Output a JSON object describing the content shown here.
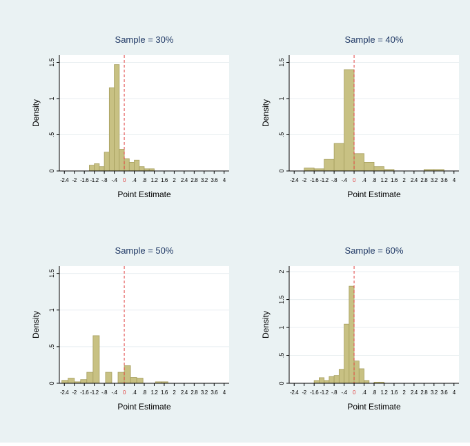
{
  "colors": {
    "background": "#eaf2f3",
    "plot_area": "#ffffff",
    "bar_fill": "#c8c183",
    "bar_stroke": "#a59e5e",
    "grid": "#e8eef0",
    "ref_line": "#e0413f",
    "title": "#1e3764",
    "text": "#000000"
  },
  "chart_data": [
    {
      "type": "bar",
      "title": "Sample = 30%",
      "xlabel": "Point Estimate",
      "ylabel": "Density",
      "xlim": [
        -2.6,
        4.2
      ],
      "ylim": [
        0,
        1.6
      ],
      "xticks": [
        -2.4,
        -2,
        -1.6,
        -1.2,
        -0.8,
        -0.4,
        0,
        0.4,
        0.8,
        1.2,
        1.6,
        2,
        2.4,
        2.8,
        3.2,
        3.6,
        4
      ],
      "xtick_labels": [
        "-2.4",
        "-2",
        "-1.6",
        "-1.2",
        "-.8",
        "-.4",
        "0",
        ".4",
        ".8",
        "1.2",
        "1.6",
        "2",
        "2.4",
        "2.8",
        "3.2",
        "3.6",
        "4"
      ],
      "yticks": [
        0,
        0.5,
        1,
        1.5
      ],
      "ytick_labels": [
        "0",
        ".5",
        "1",
        "1.5"
      ],
      "grid": true,
      "ref_line_x": 0,
      "bin_width": 0.2,
      "bins": [
        {
          "x": -1.4,
          "y": 0.08
        },
        {
          "x": -1.2,
          "y": 0.1
        },
        {
          "x": -1.0,
          "y": 0.06
        },
        {
          "x": -0.8,
          "y": 0.26
        },
        {
          "x": -0.6,
          "y": 1.15
        },
        {
          "x": -0.4,
          "y": 1.47
        },
        {
          "x": -0.2,
          "y": 0.3
        },
        {
          "x": 0.0,
          "y": 0.17
        },
        {
          "x": 0.2,
          "y": 0.12
        },
        {
          "x": 0.4,
          "y": 0.15
        },
        {
          "x": 0.6,
          "y": 0.06
        },
        {
          "x": 0.8,
          "y": 0.03
        },
        {
          "x": 1.0,
          "y": 0.03
        }
      ]
    },
    {
      "type": "bar",
      "title": "Sample = 40%",
      "xlabel": "Point Estimate",
      "ylabel": "Density",
      "xlim": [
        -2.6,
        4.2
      ],
      "ylim": [
        0,
        1.6
      ],
      "xticks": [
        -2.4,
        -2,
        -1.6,
        -1.2,
        -0.8,
        -0.4,
        0,
        0.4,
        0.8,
        1.2,
        1.6,
        2,
        2.4,
        2.8,
        3.2,
        3.6,
        4
      ],
      "xtick_labels": [
        "-2.4",
        "-2",
        "-1.6",
        "-1.2",
        "-.8",
        "-.4",
        "0",
        ".4",
        ".8",
        "1.2",
        "1.6",
        "2",
        "2.4",
        "2.8",
        "3.2",
        "3.6",
        "4"
      ],
      "yticks": [
        0,
        0.5,
        1,
        1.5
      ],
      "ytick_labels": [
        "0",
        ".5",
        "1",
        "1.5"
      ],
      "grid": true,
      "ref_line_x": 0,
      "bin_width": 0.4,
      "bins": [
        {
          "x": -2.0,
          "y": 0.04
        },
        {
          "x": -1.6,
          "y": 0.03
        },
        {
          "x": -1.2,
          "y": 0.16
        },
        {
          "x": -0.8,
          "y": 0.38
        },
        {
          "x": -0.4,
          "y": 1.4
        },
        {
          "x": 0.0,
          "y": 0.24
        },
        {
          "x": 0.4,
          "y": 0.12
        },
        {
          "x": 0.8,
          "y": 0.06
        },
        {
          "x": 1.2,
          "y": 0.02
        },
        {
          "x": 2.8,
          "y": 0.02
        },
        {
          "x": 3.2,
          "y": 0.02
        }
      ]
    },
    {
      "type": "bar",
      "title": "Sample = 50%",
      "xlabel": "Point Estimate",
      "ylabel": "Density",
      "xlim": [
        -2.6,
        4.2
      ],
      "ylim": [
        0,
        1.6
      ],
      "xticks": [
        -2.4,
        -2,
        -1.6,
        -1.2,
        -0.8,
        -0.4,
        0,
        0.4,
        0.8,
        1.2,
        1.6,
        2,
        2.4,
        2.8,
        3.2,
        3.6,
        4
      ],
      "xtick_labels": [
        "-2.4",
        "-2",
        "-1.6",
        "-1.2",
        "-.8",
        "-.4",
        "0",
        ".4",
        ".8",
        "1.2",
        "1.6",
        "2",
        "2.4",
        "2.8",
        "3.2",
        "3.6",
        "4"
      ],
      "yticks": [
        0,
        0.5,
        1,
        1.5
      ],
      "ytick_labels": [
        "0",
        ".5",
        "1",
        "1.5"
      ],
      "grid": true,
      "ref_line_x": 0,
      "bin_width": 0.25,
      "bins": [
        {
          "x": -2.5,
          "y": 0.04
        },
        {
          "x": -2.25,
          "y": 0.07
        },
        {
          "x": -2.0,
          "y": 0.02
        },
        {
          "x": -1.75,
          "y": 0.05
        },
        {
          "x": -1.5,
          "y": 0.15
        },
        {
          "x": -1.25,
          "y": 0.65
        },
        {
          "x": -0.25,
          "y": 0.15
        },
        {
          "x": -0.5,
          "y": 0.0
        },
        {
          "x": -0.75,
          "y": 0.15
        },
        {
          "x": -1.0,
          "y": 0.0
        },
        {
          "x": 0.0,
          "y": 0.24
        },
        {
          "x": 0.25,
          "y": 0.08
        },
        {
          "x": 0.5,
          "y": 0.07
        },
        {
          "x": 1.25,
          "y": 0.02
        },
        {
          "x": 1.5,
          "y": 0.02
        }
      ]
    },
    {
      "type": "bar",
      "title": "Sample = 60%",
      "xlabel": "Point Estimate",
      "ylabel": "Density",
      "xlim": [
        -2.6,
        4.2
      ],
      "ylim": [
        0,
        2.1
      ],
      "xticks": [
        -2.4,
        -2,
        -1.6,
        -1.2,
        -0.8,
        -0.4,
        0,
        0.4,
        0.8,
        1.2,
        1.6,
        2,
        2.4,
        2.8,
        3.2,
        3.6,
        4
      ],
      "xtick_labels": [
        "-2.4",
        "-2",
        "-1.6",
        "-1.2",
        "-.8",
        "-.4",
        "0",
        ".4",
        ".8",
        "1.2",
        "1.6",
        "2",
        "2.4",
        "2.8",
        "3.2",
        "3.6",
        "4"
      ],
      "yticks": [
        0,
        0.5,
        1,
        1.5,
        2
      ],
      "ytick_labels": [
        "0",
        ".5",
        "1",
        "1.5",
        "2"
      ],
      "grid": true,
      "ref_line_x": 0,
      "bin_width": 0.2,
      "bins": [
        {
          "x": -1.6,
          "y": 0.05
        },
        {
          "x": -1.4,
          "y": 0.1
        },
        {
          "x": -1.2,
          "y": 0.05
        },
        {
          "x": -1.0,
          "y": 0.12
        },
        {
          "x": -0.8,
          "y": 0.14
        },
        {
          "x": -0.6,
          "y": 0.25
        },
        {
          "x": -0.4,
          "y": 1.06
        },
        {
          "x": -0.2,
          "y": 1.74
        },
        {
          "x": 0.0,
          "y": 0.4
        },
        {
          "x": 0.2,
          "y": 0.26
        },
        {
          "x": 0.4,
          "y": 0.05
        },
        {
          "x": 0.8,
          "y": 0.02
        },
        {
          "x": 1.0,
          "y": 0.02
        }
      ]
    }
  ]
}
